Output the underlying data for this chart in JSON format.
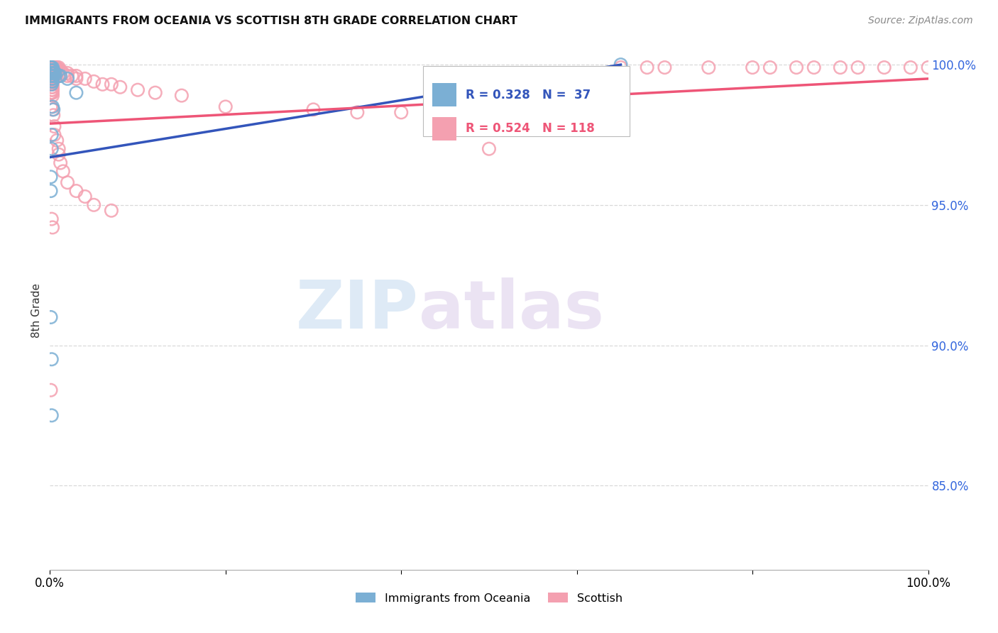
{
  "title": "IMMIGRANTS FROM OCEANIA VS SCOTTISH 8TH GRADE CORRELATION CHART",
  "source": "Source: ZipAtlas.com",
  "ylabel": "8th Grade",
  "blue_color": "#7bafd4",
  "pink_color": "#f4a0b0",
  "blue_line_color": "#3355bb",
  "pink_line_color": "#ee5577",
  "blue_R": 0.328,
  "blue_N": 37,
  "pink_R": 0.524,
  "pink_N": 118,
  "blue_trendline": [
    0.0,
    0.967,
    0.65,
    1.0
  ],
  "pink_trendline": [
    0.0,
    0.979,
    1.0,
    0.995
  ],
  "blue_scatter": [
    [
      0.001,
      0.999
    ],
    [
      0.001,
      0.998
    ],
    [
      0.001,
      0.997
    ],
    [
      0.001,
      0.996
    ],
    [
      0.002,
      0.999
    ],
    [
      0.002,
      0.998
    ],
    [
      0.002,
      0.997
    ],
    [
      0.002,
      0.996
    ],
    [
      0.002,
      0.995
    ],
    [
      0.002,
      0.994
    ],
    [
      0.002,
      0.993
    ],
    [
      0.003,
      0.999
    ],
    [
      0.003,
      0.998
    ],
    [
      0.003,
      0.997
    ],
    [
      0.003,
      0.996
    ],
    [
      0.003,
      0.995
    ],
    [
      0.003,
      0.994
    ],
    [
      0.004,
      0.998
    ],
    [
      0.004,
      0.997
    ],
    [
      0.004,
      0.996
    ],
    [
      0.005,
      0.997
    ],
    [
      0.005,
      0.996
    ],
    [
      0.006,
      0.997
    ],
    [
      0.01,
      0.996
    ],
    [
      0.012,
      0.996
    ],
    [
      0.02,
      0.995
    ],
    [
      0.03,
      0.99
    ],
    [
      0.003,
      0.985
    ],
    [
      0.004,
      0.984
    ],
    [
      0.002,
      0.975
    ],
    [
      0.002,
      0.97
    ],
    [
      0.001,
      0.96
    ],
    [
      0.001,
      0.955
    ],
    [
      0.001,
      0.91
    ],
    [
      0.002,
      0.895
    ],
    [
      0.002,
      0.875
    ],
    [
      0.65,
      1.0
    ]
  ],
  "pink_scatter": [
    [
      0.001,
      0.999
    ],
    [
      0.001,
      0.999
    ],
    [
      0.001,
      0.999
    ],
    [
      0.001,
      0.998
    ],
    [
      0.001,
      0.998
    ],
    [
      0.001,
      0.998
    ],
    [
      0.001,
      0.997
    ],
    [
      0.001,
      0.997
    ],
    [
      0.001,
      0.996
    ],
    [
      0.001,
      0.996
    ],
    [
      0.001,
      0.995
    ],
    [
      0.001,
      0.995
    ],
    [
      0.001,
      0.994
    ],
    [
      0.001,
      0.994
    ],
    [
      0.001,
      0.993
    ],
    [
      0.001,
      0.99
    ],
    [
      0.001,
      0.985
    ],
    [
      0.001,
      0.884
    ],
    [
      0.002,
      0.999
    ],
    [
      0.002,
      0.999
    ],
    [
      0.002,
      0.999
    ],
    [
      0.002,
      0.998
    ],
    [
      0.002,
      0.998
    ],
    [
      0.002,
      0.997
    ],
    [
      0.002,
      0.997
    ],
    [
      0.002,
      0.996
    ],
    [
      0.002,
      0.996
    ],
    [
      0.002,
      0.995
    ],
    [
      0.002,
      0.995
    ],
    [
      0.002,
      0.994
    ],
    [
      0.002,
      0.993
    ],
    [
      0.002,
      0.992
    ],
    [
      0.002,
      0.991
    ],
    [
      0.002,
      0.99
    ],
    [
      0.003,
      0.999
    ],
    [
      0.003,
      0.999
    ],
    [
      0.003,
      0.998
    ],
    [
      0.003,
      0.998
    ],
    [
      0.003,
      0.997
    ],
    [
      0.003,
      0.997
    ],
    [
      0.003,
      0.996
    ],
    [
      0.003,
      0.996
    ],
    [
      0.003,
      0.995
    ],
    [
      0.003,
      0.994
    ],
    [
      0.003,
      0.993
    ],
    [
      0.003,
      0.992
    ],
    [
      0.003,
      0.991
    ],
    [
      0.003,
      0.99
    ],
    [
      0.003,
      0.989
    ],
    [
      0.004,
      0.999
    ],
    [
      0.004,
      0.999
    ],
    [
      0.004,
      0.998
    ],
    [
      0.004,
      0.998
    ],
    [
      0.004,
      0.997
    ],
    [
      0.004,
      0.996
    ],
    [
      0.004,
      0.995
    ],
    [
      0.005,
      0.999
    ],
    [
      0.005,
      0.998
    ],
    [
      0.005,
      0.997
    ],
    [
      0.005,
      0.996
    ],
    [
      0.005,
      0.995
    ],
    [
      0.006,
      0.999
    ],
    [
      0.006,
      0.998
    ],
    [
      0.006,
      0.997
    ],
    [
      0.007,
      0.999
    ],
    [
      0.007,
      0.998
    ],
    [
      0.008,
      0.999
    ],
    [
      0.01,
      0.999
    ],
    [
      0.01,
      0.998
    ],
    [
      0.012,
      0.998
    ],
    [
      0.015,
      0.997
    ],
    [
      0.02,
      0.997
    ],
    [
      0.02,
      0.996
    ],
    [
      0.025,
      0.996
    ],
    [
      0.03,
      0.996
    ],
    [
      0.03,
      0.995
    ],
    [
      0.04,
      0.995
    ],
    [
      0.05,
      0.994
    ],
    [
      0.06,
      0.993
    ],
    [
      0.07,
      0.993
    ],
    [
      0.08,
      0.992
    ],
    [
      0.1,
      0.991
    ],
    [
      0.12,
      0.99
    ],
    [
      0.15,
      0.989
    ],
    [
      0.003,
      0.984
    ],
    [
      0.004,
      0.982
    ],
    [
      0.005,
      0.978
    ],
    [
      0.005,
      0.975
    ],
    [
      0.008,
      0.973
    ],
    [
      0.01,
      0.97
    ],
    [
      0.01,
      0.968
    ],
    [
      0.012,
      0.965
    ],
    [
      0.015,
      0.962
    ],
    [
      0.02,
      0.958
    ],
    [
      0.03,
      0.955
    ],
    [
      0.04,
      0.953
    ],
    [
      0.05,
      0.95
    ],
    [
      0.07,
      0.948
    ],
    [
      0.002,
      0.945
    ],
    [
      0.003,
      0.942
    ],
    [
      0.2,
      0.985
    ],
    [
      0.3,
      0.984
    ],
    [
      0.35,
      0.983
    ],
    [
      0.4,
      0.983
    ],
    [
      0.5,
      0.982
    ],
    [
      0.5,
      0.97
    ],
    [
      0.6,
      0.981
    ],
    [
      0.65,
      0.999
    ],
    [
      0.68,
      0.999
    ],
    [
      0.7,
      0.999
    ],
    [
      0.75,
      0.999
    ],
    [
      0.8,
      0.999
    ],
    [
      0.82,
      0.999
    ],
    [
      0.85,
      0.999
    ],
    [
      0.87,
      0.999
    ],
    [
      0.9,
      0.999
    ],
    [
      0.92,
      0.999
    ],
    [
      0.95,
      0.999
    ],
    [
      0.98,
      0.999
    ],
    [
      1.0,
      0.999
    ]
  ],
  "xlim": [
    0.0,
    1.0
  ],
  "ylim": [
    0.82,
    1.005
  ],
  "yticks": [
    0.85,
    0.9,
    0.95,
    1.0
  ],
  "ytick_labels": [
    "85.0%",
    "90.0%",
    "95.0%",
    "100.0%"
  ],
  "background_color": "#ffffff",
  "grid_color": "#d0d0d0",
  "watermark_zip": "ZIP",
  "watermark_atlas": "atlas"
}
